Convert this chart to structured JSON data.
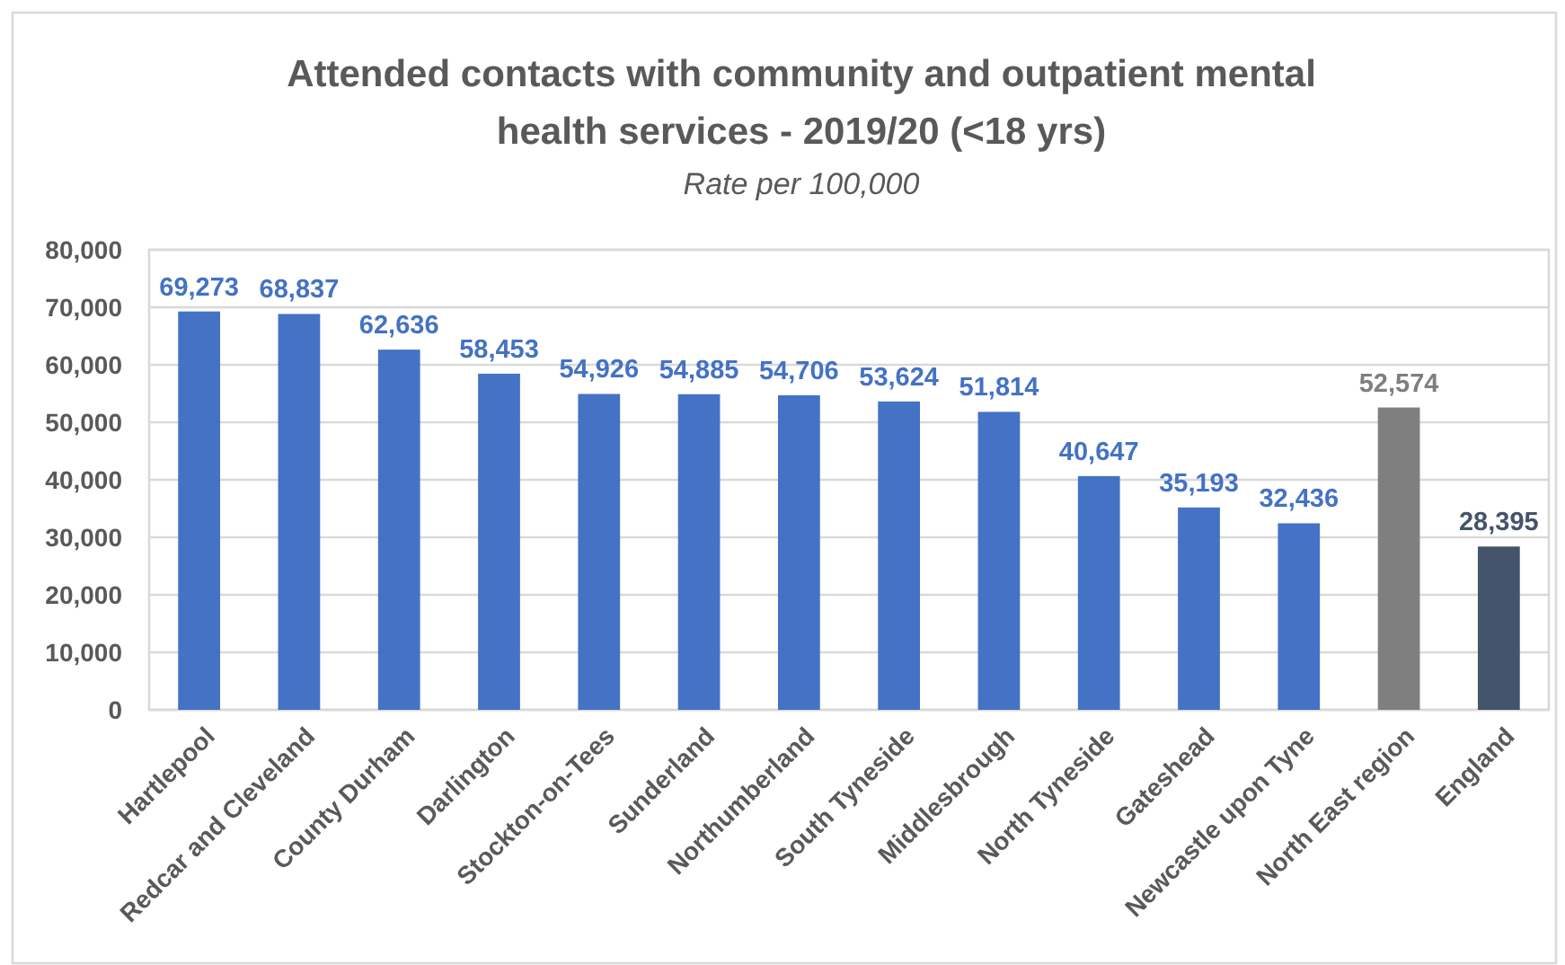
{
  "chart_data": {
    "type": "bar",
    "title": "Attended contacts with community and outpatient mental health services - 2019/20 (<18 yrs)",
    "subtitle": "Rate per 100,000",
    "categories": [
      "Hartlepool",
      "Redcar and Cleveland",
      "County Durham",
      "Darlington",
      "Stockton-on-Tees",
      "Sunderland",
      "Northumberland",
      "South Tyneside",
      "Middlesbrough",
      "North Tyneside",
      "Gateshead",
      "Newcastle upon Tyne",
      "North East region",
      "England"
    ],
    "values": [
      69273,
      68837,
      62636,
      58453,
      54926,
      54885,
      54706,
      53624,
      51814,
      40647,
      35193,
      32436,
      52574,
      28395
    ],
    "value_labels": [
      "69,273",
      "68,837",
      "62,636",
      "58,453",
      "54,926",
      "54,885",
      "54,706",
      "53,624",
      "51,814",
      "40,647",
      "35,193",
      "32,436",
      "52,574",
      "28,395"
    ],
    "colors": [
      "#4472c4",
      "#4472c4",
      "#4472c4",
      "#4472c4",
      "#4472c4",
      "#4472c4",
      "#4472c4",
      "#4472c4",
      "#4472c4",
      "#4472c4",
      "#4472c4",
      "#4472c4",
      "#7f7f7f",
      "#44546a"
    ],
    "ylim": [
      0,
      80000
    ],
    "yticks": [
      0,
      {
        "value": 10000,
        "label": "10,000"
      },
      {
        "value": 20000,
        "label": "20,000"
      },
      {
        "value": 30000,
        "label": "30,000"
      },
      {
        "value": 40000,
        "label": "40,000"
      },
      {
        "value": 50000,
        "label": "50,000"
      },
      {
        "value": 60000,
        "label": "60,000"
      },
      {
        "value": 70000,
        "label": "70,000"
      },
      {
        "value": 80000,
        "label": "80,000"
      }
    ],
    "grid": "y"
  }
}
